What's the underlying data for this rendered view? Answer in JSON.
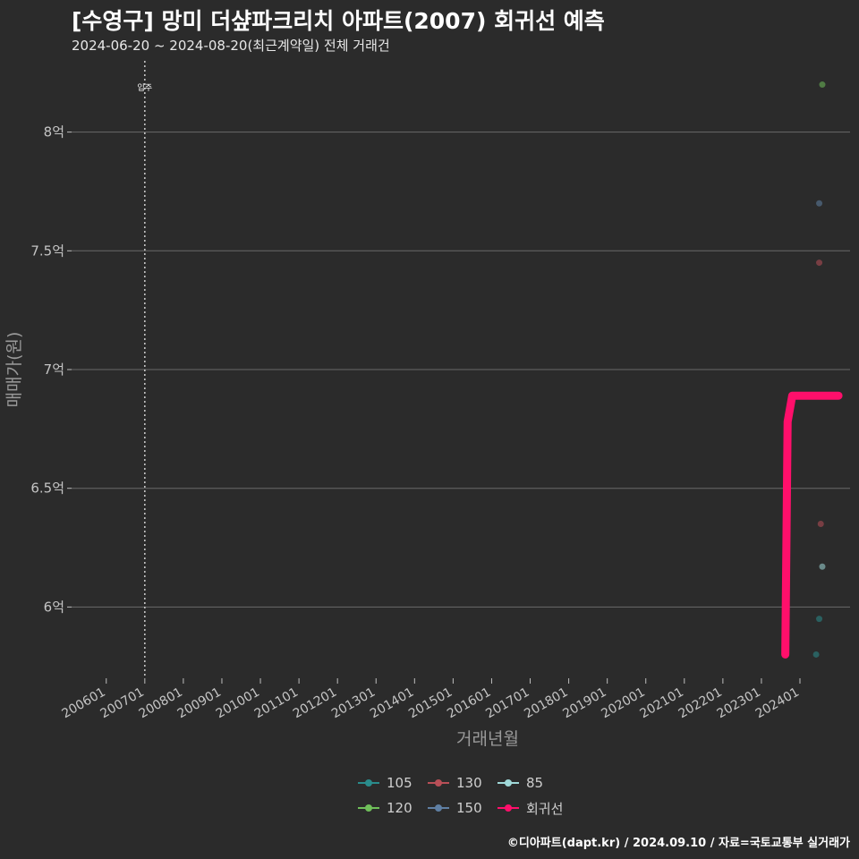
{
  "header": {
    "title": "[수영구] 망미 더샾파크리치 아파트(2007) 회귀선 예측",
    "subtitle": "2024-06-20 ~ 2024-08-20(최근계약일) 전체 거래건"
  },
  "caption": "©디아파트(dapt.kr) / 2024.09.10 / 자료=국토교통부 실거래가",
  "chart_data": {
    "type": "scatter",
    "xlabel": "거래년월",
    "ylabel": "매매가(원)",
    "x_ticks": [
      "200601",
      "200701",
      "200801",
      "200901",
      "201001",
      "201101",
      "201201",
      "201301",
      "201401",
      "201501",
      "201601",
      "201701",
      "201801",
      "201901",
      "202001",
      "202101",
      "202201",
      "202301",
      "202401"
    ],
    "x_range": [
      2005.1,
      2025.3
    ],
    "y_ticks": [
      6.0,
      6.5,
      7.0,
      7.5,
      8.0
    ],
    "y_tick_labels": [
      "6억",
      "6.5억",
      "7억",
      "7.5억",
      "8억"
    ],
    "y_range": [
      5.7,
      8.3
    ],
    "grid": true,
    "vline": {
      "x": 2007.0,
      "label": "입주",
      "style": "dotted"
    },
    "series": [
      {
        "name": "105",
        "color": "#2a8c8c",
        "points": [
          {
            "x": 2024.42,
            "y": 5.8
          },
          {
            "x": 2024.5,
            "y": 5.95
          }
        ]
      },
      {
        "name": "120",
        "color": "#6fbf5a",
        "points": [
          {
            "x": 2024.58,
            "y": 8.2
          }
        ]
      },
      {
        "name": "130",
        "color": "#b84f57",
        "points": [
          {
            "x": 2024.5,
            "y": 7.45
          },
          {
            "x": 2024.54,
            "y": 6.35
          }
        ]
      },
      {
        "name": "150",
        "color": "#5f7fa3",
        "points": [
          {
            "x": 2024.5,
            "y": 7.7
          }
        ]
      },
      {
        "name": "85",
        "color": "#9fd8d8",
        "points": [
          {
            "x": 2024.58,
            "y": 6.17
          }
        ]
      }
    ],
    "regression": {
      "name": "회귀선",
      "color": "#ff0f6b",
      "points": [
        {
          "x": 2023.62,
          "y": 5.8
        },
        {
          "x": 2023.68,
          "y": 6.78
        },
        {
          "x": 2023.8,
          "y": 6.89
        },
        {
          "x": 2024.1,
          "y": 6.89
        },
        {
          "x": 2024.6,
          "y": 6.89
        },
        {
          "x": 2025.0,
          "y": 6.89
        }
      ]
    }
  },
  "legend": {
    "items": [
      {
        "label": "105",
        "color": "#2a8c8c"
      },
      {
        "label": "130",
        "color": "#b84f57"
      },
      {
        "label": "85",
        "color": "#9fd8d8"
      },
      {
        "label": "120",
        "color": "#6fbf5a"
      },
      {
        "label": "150",
        "color": "#5f7fa3"
      },
      {
        "label": "회귀선",
        "color": "#ff0f6b"
      }
    ]
  }
}
